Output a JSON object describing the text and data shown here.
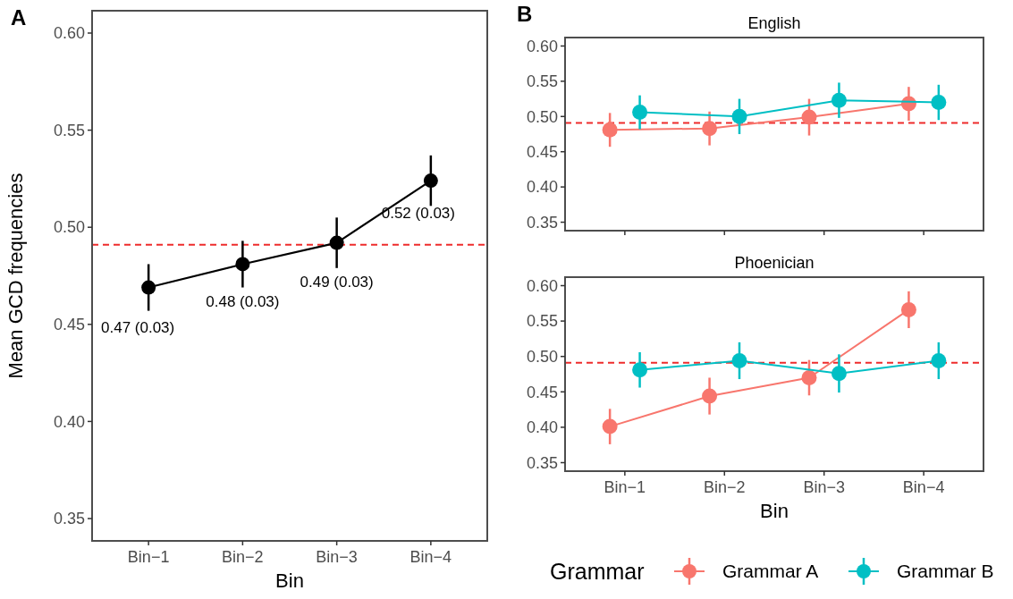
{
  "chart_data": [
    {
      "type": "line",
      "annotations": [
        "A"
      ],
      "xlabel": "Bin",
      "ylabel": "Mean GCD frequencies",
      "categories": [
        "Bin−1",
        "Bin−2",
        "Bin−3",
        "Bin−4"
      ],
      "values": [
        0.469,
        0.481,
        0.492,
        0.524
      ],
      "errors": [
        0.012,
        0.012,
        0.013,
        0.013
      ],
      "color": "#000000",
      "value_labels": [
        "0.47 (0.03)",
        "0.48 (0.03)",
        "0.49 (0.03)",
        "0.52 (0.03)"
      ],
      "ylim": [
        0.3385,
        0.6115
      ],
      "yticks": [
        0.35,
        {
          "value": 0.4,
          "label": "0.40"
        },
        0.45,
        {
          "value": 0.5,
          "label": "0.50"
        },
        0.55,
        {
          "value": 0.6,
          "label": "0.60"
        }
      ],
      "marker": "circle",
      "line_style": "solid",
      "ref_lines": [
        {
          "axis": "y",
          "value": 0.491,
          "color": "#ee2c2c",
          "line_style": "dashed"
        }
      ]
    },
    {
      "type": "line",
      "annotations": [
        "B"
      ],
      "title": "English",
      "categories": [
        null,
        null,
        null,
        null
      ],
      "series": [
        {
          "color": "#f8766d",
          "values": [
            0.481,
            0.483,
            0.499,
            0.518
          ],
          "errors": [
            0.024,
            0.024,
            0.026,
            0.024
          ]
        },
        {
          "color": "#00bfc4",
          "values": [
            0.506,
            0.5,
            0.523,
            0.52
          ],
          "errors": [
            0.024,
            0.025,
            0.025,
            0.025
          ]
        }
      ],
      "ylim": [
        0.338,
        0.612
      ],
      "yticks": [
        0.35,
        {
          "value": 0.4,
          "label": "0.40"
        },
        0.45,
        {
          "value": 0.5,
          "label": "0.50"
        },
        0.55,
        {
          "value": 0.6,
          "label": "0.60"
        }
      ],
      "tick_labels": "y",
      "marker": "circle",
      "line_style": "solid",
      "ref_lines": [
        {
          "axis": "y",
          "value": 0.491,
          "color": "#ee2c2c",
          "line_style": "dashed"
        }
      ]
    },
    {
      "type": "line",
      "title": "Phoenician",
      "xlabel": "Bin",
      "categories": [
        "Bin−1",
        "Bin−2",
        "Bin−3",
        "Bin−4"
      ],
      "series": [
        {
          "name": "Grammar A",
          "color": "#f8766d",
          "values": [
            0.401,
            0.444,
            0.47,
            0.566
          ],
          "errors": [
            0.025,
            0.026,
            0.025,
            0.026
          ]
        },
        {
          "name": "Grammar B",
          "color": "#00bfc4",
          "values": [
            0.481,
            0.494,
            0.476,
            0.494
          ],
          "errors": [
            0.025,
            0.026,
            0.027,
            0.026
          ]
        }
      ],
      "ylim": [
        0.338,
        0.612
      ],
      "yticks": [
        0.35,
        {
          "value": 0.4,
          "label": "0.40"
        },
        0.45,
        {
          "value": 0.5,
          "label": "0.50"
        },
        0.55,
        {
          "value": 0.6,
          "label": "0.60"
        }
      ],
      "marker": "circle",
      "line_style": "solid",
      "legend": "bottom",
      "legend_title": "Grammar",
      "ref_lines": [
        {
          "axis": "y",
          "value": 0.491,
          "color": "#ee2c2c",
          "line_style": "dashed"
        }
      ]
    }
  ]
}
